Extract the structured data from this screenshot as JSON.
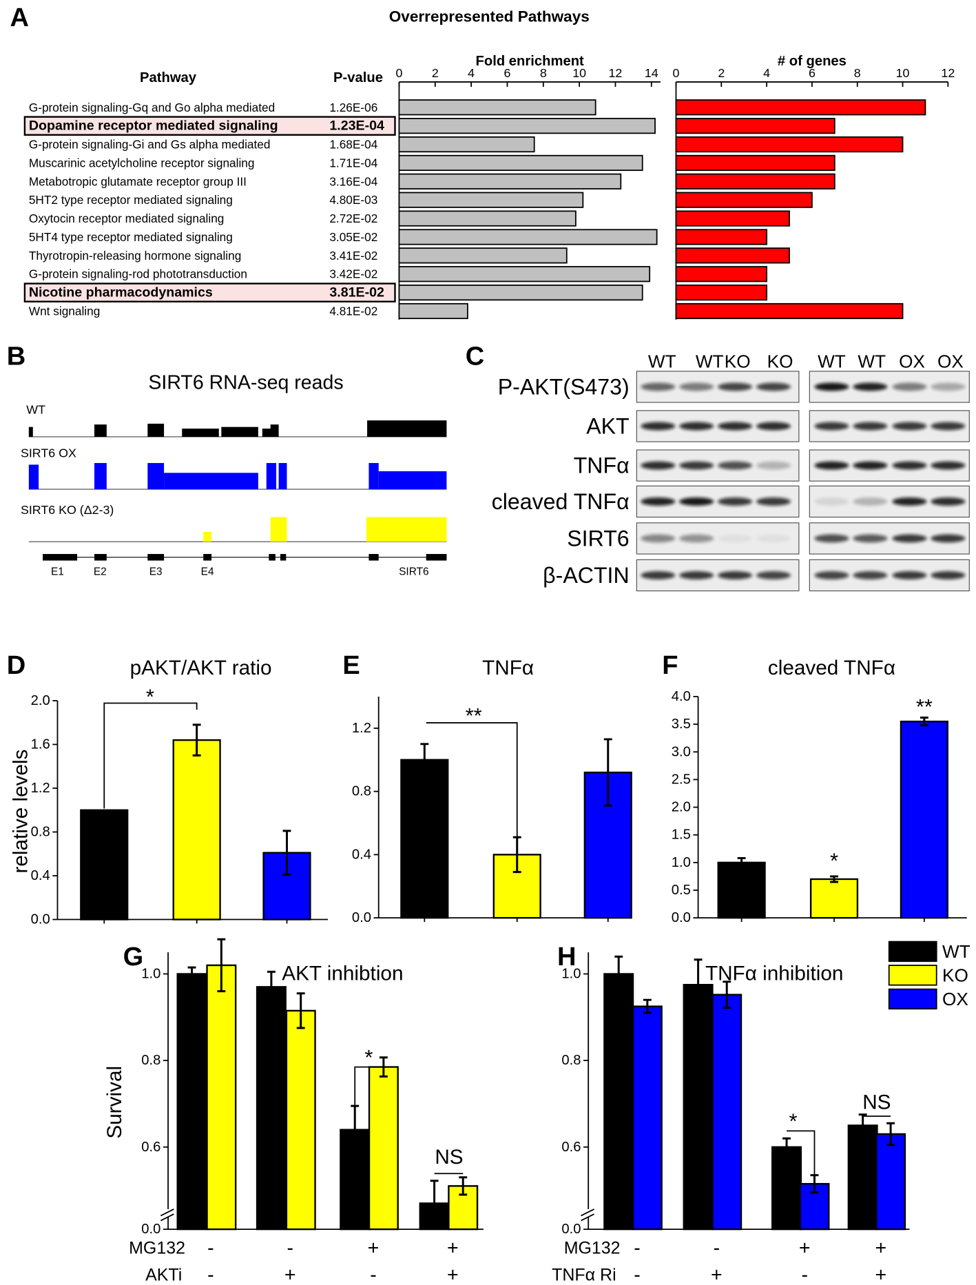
{
  "panel_labels": [
    "A",
    "B",
    "C",
    "D",
    "E",
    "F",
    "G",
    "H"
  ],
  "panel_a": {
    "title": "Overrepresented Pathways",
    "pathway_header": "Pathway",
    "pvalue_header": "P-value",
    "pathways": [
      "G-protein signaling-Gq and Go alpha mediated",
      "Dopamine receptor mediated signaling",
      "G-protein signaling-Gi and Gs alpha mediated",
      "Muscarinic acetylcholine receptor signaling",
      "Metabotropic glutamate receptor group III",
      "5HT2 type receptor mediated signaling",
      "Oxytocin receptor mediated signaling",
      "5HT4 type receptor mediated signaling",
      "Thyrotropin-releasing hormone signaling",
      "G-protein signaling-rod phototransduction",
      "Nicotine pharmacodynamics",
      "Wnt signaling"
    ],
    "pvalues": [
      "1.26E-06",
      "1.23E-04",
      "1.68E-04",
      "1.71E-04",
      "3.16E-04",
      "4.80E-03",
      "2.72E-02",
      "3.05E-02",
      "3.41E-02",
      "3.42E-02",
      "3.81E-02",
      "4.81E-02"
    ],
    "highlighted": [
      false,
      true,
      false,
      false,
      false,
      false,
      false,
      false,
      false,
      false,
      true,
      false
    ]
  },
  "panel_b": {
    "title": "SIRT6 RNA-seq reads",
    "tracks": [
      "WT",
      "SIRT6 OX",
      "SIRT6 KO (Δ2-3)"
    ],
    "track_colors": [
      "#000000",
      "#0000ff",
      "#ffff00"
    ],
    "exons": [
      "E1",
      "E2",
      "E3",
      "E4",
      "SIRT6"
    ]
  },
  "panel_c": {
    "left_lanes": [
      "WT",
      "WT",
      "KO",
      "KO"
    ],
    "left_lane_colors": [
      "#000000",
      "#000000",
      "#f5e600",
      "#f5e600"
    ],
    "right_lanes": [
      "WT",
      "WT",
      "OX",
      "OX"
    ],
    "right_lane_colors": [
      "#000000",
      "#000000",
      "#2a2aff",
      "#2a2aff"
    ],
    "rows": [
      "P-AKT(S473)",
      "AKT",
      "TNFα",
      "cleaved TNFα",
      "SIRT6",
      "β-ACTIN"
    ]
  },
  "legend": [
    {
      "name": "WT",
      "color": "#000000"
    },
    {
      "name": "KO",
      "color": "#ffff00"
    },
    {
      "name": "OX",
      "color": "#0000ff"
    }
  ],
  "chart_data": [
    {
      "type": "hbar",
      "title": "Fold enrichment",
      "values": [
        10.9,
        14.2,
        7.5,
        13.5,
        12.3,
        10.2,
        9.8,
        14.3,
        9.3,
        13.9,
        13.5,
        3.8
      ],
      "color": "#c0c0c0",
      "xlim": [
        0,
        14.5
      ],
      "xticks": [
        0,
        2,
        4,
        6,
        8,
        10,
        12,
        14
      ]
    },
    {
      "type": "hbar",
      "title": "# of genes",
      "values": [
        11,
        7,
        10,
        7,
        7,
        6,
        5,
        4,
        5,
        4,
        4,
        10
      ],
      "color": "#ff0000",
      "xlim": [
        0,
        12
      ],
      "xticks": [
        0,
        2,
        4,
        6,
        8,
        10,
        12
      ]
    },
    {
      "type": "bar",
      "title": "pAKT/AKT ratio",
      "ylabel": "relative levels",
      "values": [
        1.0,
        1.64,
        0.61
      ],
      "errors": [
        null,
        0.14,
        0.2
      ],
      "colors": [
        "#000000",
        "#ffff00",
        "#0000ff"
      ],
      "ylim": [
        0,
        2.0
      ],
      "yticks": [
        {
          "value": 0,
          "label": "0.0"
        },
        0.4,
        0.8,
        1.2,
        1.6,
        {
          "value": 2,
          "label": "2.0"
        }
      ],
      "annotations": [
        "*"
      ]
    },
    {
      "type": "bar",
      "title": "TNFα",
      "values": [
        1.0,
        0.4,
        0.92
      ],
      "errors": [
        0.1,
        0.11,
        0.21
      ],
      "colors": [
        "#000000",
        "#ffff00",
        "#0000ff"
      ],
      "ylim": [
        0,
        1.4
      ],
      "yticks": [
        {
          "value": 0,
          "label": "0.0"
        },
        0.4,
        0.8,
        1.2
      ],
      "annotations": [
        "**"
      ]
    },
    {
      "type": "bar",
      "title": "cleaved TNFα",
      "values": [
        1.0,
        0.7,
        3.55
      ],
      "errors": [
        0.08,
        0.05,
        0.07
      ],
      "colors": [
        "#000000",
        "#ffff00",
        "#0000ff"
      ],
      "ylim": [
        0,
        4.0
      ],
      "yticks": [
        {
          "value": 0,
          "label": "0.0"
        },
        0.5,
        {
          "value": 1,
          "label": "1.0"
        },
        1.5,
        {
          "value": 2,
          "label": "2.0"
        },
        2.5,
        {
          "value": 3,
          "label": "3.0"
        },
        3.5,
        {
          "value": 4,
          "label": "4.0"
        }
      ],
      "annotations": [
        "*",
        "**"
      ]
    },
    {
      "type": "grouped_bar",
      "title": "AKT inhibtion",
      "ylabel": "Survival",
      "ylim": [
        0,
        1.05
      ],
      "y_break": [
        0.02,
        0.43
      ],
      "yticks": [
        {
          "value": 0,
          "label": "0.0"
        },
        0.6,
        0.8,
        {
          "value": 1,
          "label": "1.0"
        }
      ],
      "series": [
        {
          "color": "#000000",
          "values": [
            1.0,
            0.97,
            0.64,
            0.47
          ],
          "errors": [
            0.015,
            0.035,
            0.055,
            0.052
          ]
        },
        {
          "color": "#ffff00",
          "values": [
            1.02,
            0.915,
            0.785,
            0.51
          ],
          "errors": [
            0.06,
            0.04,
            0.022,
            0.02
          ]
        }
      ],
      "conditions": [
        {
          "name": "MG132",
          "levels": [
            "-",
            "-",
            "+",
            "+"
          ]
        },
        {
          "name": "AKTi",
          "levels": [
            "-",
            "+",
            "-",
            "+"
          ]
        }
      ],
      "annotations": [
        "*",
        "NS"
      ]
    },
    {
      "type": "grouped_bar",
      "title": "TNFα inhibition",
      "ylim": [
        0,
        1.05
      ],
      "y_break": [
        0.02,
        0.43
      ],
      "yticks": [
        {
          "value": 0,
          "label": "0.0"
        },
        0.6,
        0.8,
        {
          "value": 1,
          "label": "1.0"
        }
      ],
      "series": [
        {
          "color": "#000000",
          "values": [
            1.0,
            0.975,
            0.6,
            0.65
          ],
          "errors": [
            0.04,
            0.058,
            0.02,
            0.025
          ]
        },
        {
          "color": "#0000ff",
          "values": [
            0.925,
            0.952,
            0.515,
            0.63
          ],
          "errors": [
            0.015,
            0.03,
            0.02,
            0.025
          ]
        }
      ],
      "conditions": [
        {
          "name": "MG132",
          "levels": [
            "-",
            "-",
            "+",
            "+"
          ]
        },
        {
          "name": "TNFα Ri",
          "levels": [
            "-",
            "+",
            "-",
            "+"
          ]
        }
      ],
      "annotations": [
        "*",
        "NS"
      ]
    }
  ]
}
